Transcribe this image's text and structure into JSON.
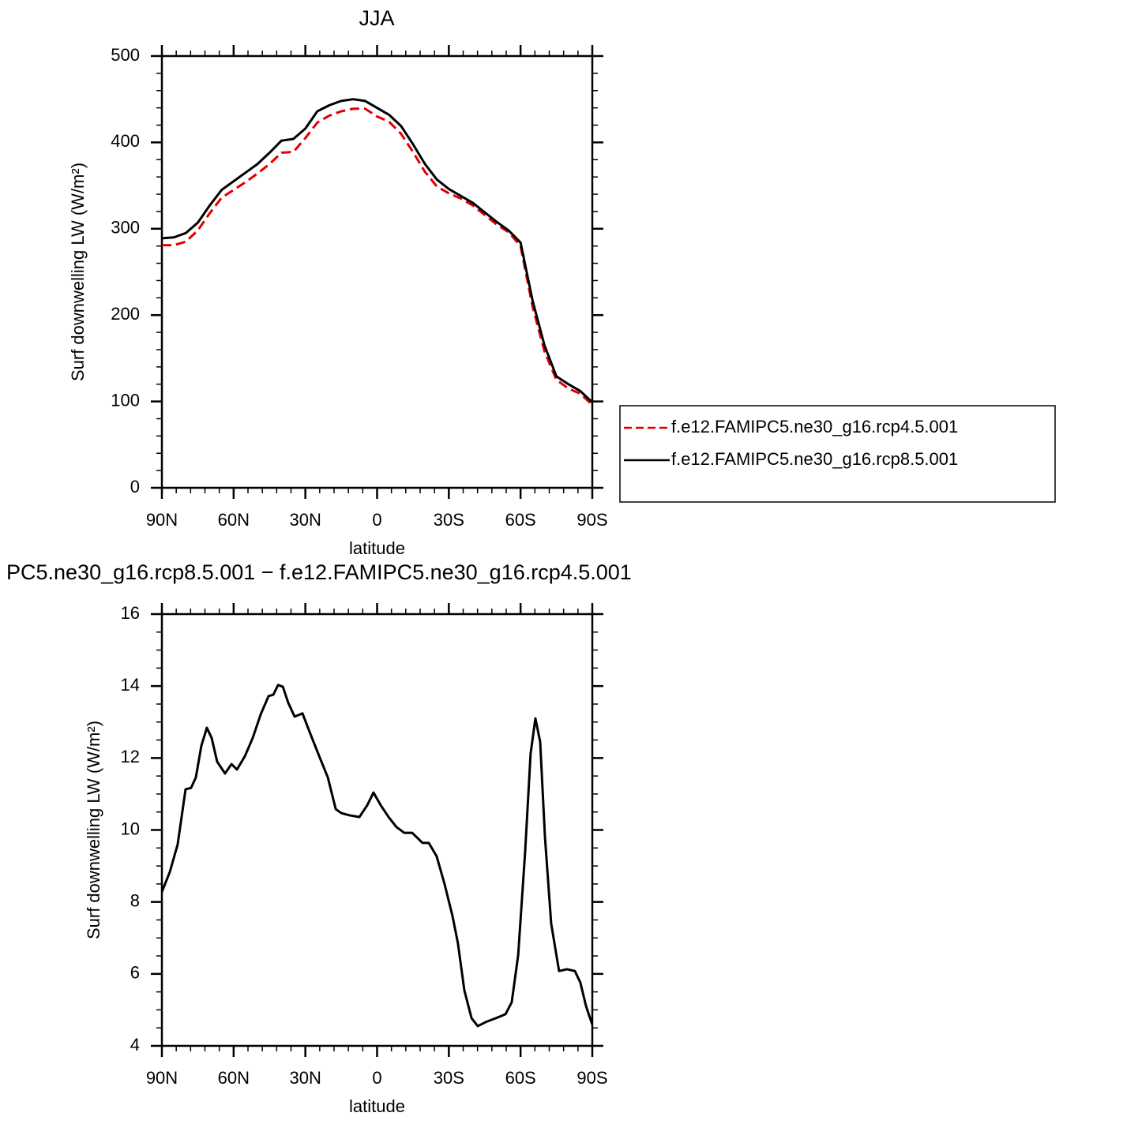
{
  "chart_data": [
    {
      "type": "line",
      "title": "JJA",
      "xlabel": "latitude",
      "ylabel": "Surf downwelling LW (W/m²)",
      "x": [
        90,
        85,
        80,
        75,
        70,
        65,
        60,
        55,
        50,
        45,
        40,
        35,
        30,
        25,
        20,
        15,
        10,
        5,
        0,
        -5,
        -10,
        -15,
        -20,
        -25,
        -30,
        -35,
        -40,
        -45,
        -50,
        -55,
        -60,
        -65,
        -70,
        -75,
        -80,
        -85,
        -90
      ],
      "series": [
        {
          "name": "f.e12.FAMIPC5.ne30_g16.rcp4.5.001",
          "color": "#e00000",
          "linestyle": "dashed",
          "values": [
            281,
            281,
            285,
            298,
            318,
            336,
            345,
            354,
            364,
            375,
            388,
            389,
            405,
            423,
            431,
            436,
            439,
            439,
            430,
            424,
            410,
            389,
            366,
            349,
            341,
            335,
            327,
            316,
            305,
            296,
            280,
            210,
            158,
            125,
            115,
            109,
            96
          ]
        },
        {
          "name": "f.e12.FAMIPC5.ne30_g16.rcp8.5.001",
          "color": "#000000",
          "linestyle": "solid",
          "values": [
            289,
            290,
            295,
            307,
            327,
            345,
            355,
            365,
            375,
            388,
            402,
            404,
            416,
            436,
            443,
            448,
            450,
            448,
            440,
            432,
            419,
            398,
            375,
            357,
            346,
            338,
            330,
            319,
            308,
            298,
            284,
            217,
            165,
            129,
            120,
            112,
            99
          ]
        }
      ],
      "xlim": [
        90,
        -90
      ],
      "xticks": [
        {
          "value": 90,
          "label": "90N"
        },
        {
          "value": 60,
          "label": "60N"
        },
        {
          "value": 30,
          "label": "30N"
        },
        0,
        {
          "value": -30,
          "label": "30S"
        },
        {
          "value": -60,
          "label": "60S"
        },
        {
          "value": -90,
          "label": "90S"
        }
      ],
      "xminorticks": [
        84,
        78,
        72,
        66,
        54,
        48,
        42,
        36,
        24,
        18,
        12,
        6,
        -6,
        -12,
        -18,
        -24,
        -36,
        -42,
        -48,
        -54,
        -66,
        -72,
        -78,
        -84
      ],
      "ylim": [
        0,
        500
      ],
      "yticks": [
        0,
        100,
        200,
        300,
        400,
        500
      ],
      "yminorticks": [
        20,
        40,
        60,
        80,
        120,
        140,
        160,
        180,
        220,
        240,
        260,
        280,
        320,
        340,
        360,
        380,
        420,
        440,
        460,
        480
      ],
      "legend": "outside right"
    },
    {
      "type": "line",
      "title": "PC5.ne30_g16.rcp8.5.001 − f.e12.FAMIPC5.ne30_g16.rcp4.5.001",
      "xlabel": "latitude",
      "ylabel": "Surf downwelling LW (W/m²)",
      "x": [
        90,
        86.7,
        83.4,
        80.1,
        77.8,
        75.8,
        73.5,
        71.2,
        69.2,
        66.9,
        63.6,
        60.9,
        58.6,
        55.3,
        52.0,
        48.7,
        45.4,
        43.4,
        41.4,
        39.4,
        37.2,
        34.5,
        31.2,
        27.9,
        23.9,
        20.6,
        17.3,
        15.0,
        11.7,
        7.4,
        4.1,
        1.5,
        -1.5,
        -4.8,
        -8.1,
        -11.4,
        -14.7,
        -19.0,
        -21.6,
        -24.9,
        -28.2,
        -31.5,
        -33.8,
        -36.5,
        -39.5,
        -42.1,
        -45.4,
        -49.7,
        -53.7,
        -56.3,
        -59.0,
        -61.9,
        -64.2,
        -66.2,
        -68.2,
        -70.2,
        -72.8,
        -76.1,
        -79.4,
        -82.7,
        -85.0,
        -87.4,
        -90
      ],
      "values": [
        8.28,
        8.83,
        9.6,
        11.13,
        11.17,
        11.46,
        12.34,
        12.84,
        12.56,
        11.9,
        11.57,
        11.83,
        11.68,
        12.05,
        12.56,
        13.21,
        13.72,
        13.76,
        14.03,
        13.98,
        13.54,
        13.15,
        13.24,
        12.67,
        12.0,
        11.46,
        10.58,
        10.47,
        10.41,
        10.36,
        10.69,
        11.04,
        10.69,
        10.36,
        10.08,
        9.92,
        9.92,
        9.64,
        9.64,
        9.27,
        8.5,
        7.62,
        6.85,
        5.54,
        4.77,
        4.55,
        4.66,
        4.77,
        4.88,
        5.21,
        6.52,
        9.38,
        12.12,
        13.1,
        12.45,
        9.81,
        7.4,
        6.08,
        6.13,
        6.08,
        5.76,
        5.1,
        4.59
      ],
      "color": "#000000",
      "xlim": [
        90,
        -90
      ],
      "xticks": [
        {
          "value": 90,
          "label": "90N"
        },
        {
          "value": 60,
          "label": "60N"
        },
        {
          "value": 30,
          "label": "30N"
        },
        0,
        {
          "value": -30,
          "label": "30S"
        },
        {
          "value": -60,
          "label": "60S"
        },
        {
          "value": -90,
          "label": "90S"
        }
      ],
      "xminorticks": [
        84,
        78,
        72,
        66,
        54,
        48,
        42,
        36,
        24,
        18,
        12,
        6,
        -6,
        -12,
        -18,
        -24,
        -36,
        -42,
        -48,
        -54,
        -66,
        -72,
        -78,
        -84
      ],
      "ylim": [
        4,
        16
      ],
      "yticks": [
        4,
        6,
        8,
        10,
        12,
        14,
        16
      ],
      "yminorticks": [
        4.5,
        5,
        5.5,
        6.5,
        7,
        7.5,
        8.5,
        9,
        9.5,
        10.5,
        11,
        11.5,
        12.5,
        13,
        13.5,
        14.5,
        15,
        15.5
      ]
    }
  ]
}
